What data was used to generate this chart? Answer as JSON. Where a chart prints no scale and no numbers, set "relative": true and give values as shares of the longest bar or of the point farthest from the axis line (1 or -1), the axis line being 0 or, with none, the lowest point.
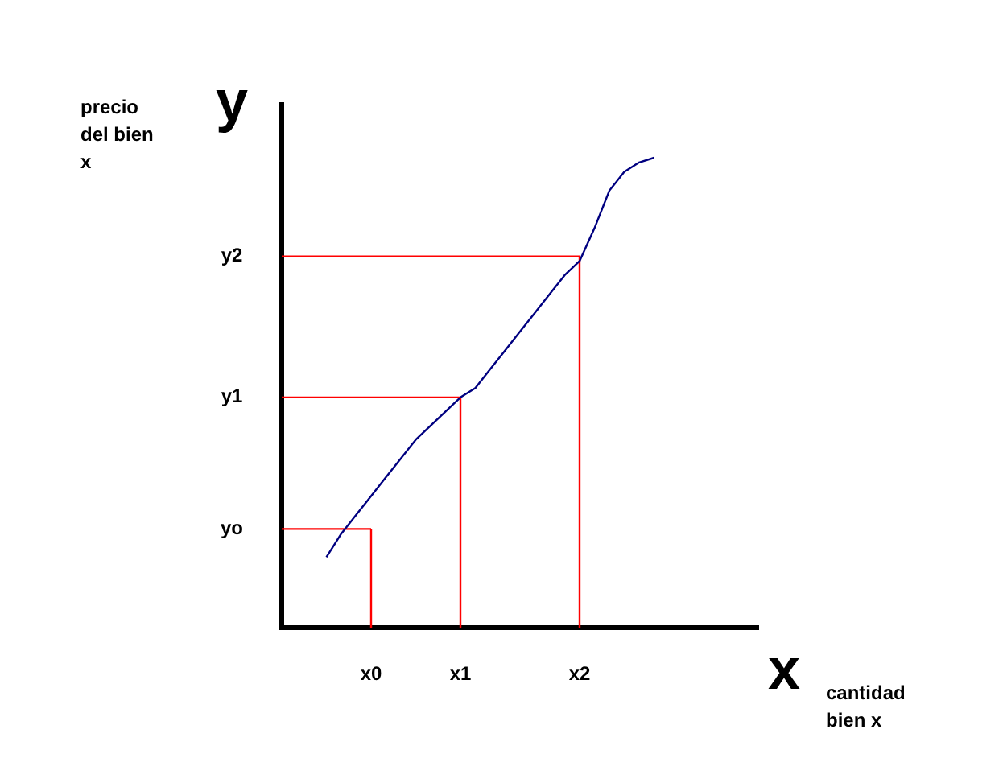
{
  "chart_data": {
    "type": "line",
    "relative": true,
    "xlabel": "cantidad bien x",
    "marker": "none",
    "annotations": [
      "y",
      "x",
      "precio del bien x"
    ],
    "categories": [
      null,
      null,
      null,
      null,
      null,
      null,
      "x0",
      null,
      null,
      null,
      null,
      null,
      "x1",
      null,
      null,
      null,
      null,
      null,
      null,
      null,
      "x2",
      null,
      null,
      null,
      null,
      null,
      null,
      null,
      null,
      null,
      null,
      null,
      null
    ],
    "series": [
      {
        "color": "#000080",
        "values": [
          null,
          null,
          null,
          0.15,
          0.2,
          0.24,
          0.28,
          0.32,
          0.36,
          0.4,
          0.43,
          0.46,
          0.49,
          0.51,
          0.55,
          0.59,
          0.63,
          0.67,
          0.71,
          0.75,
          0.78,
          0.85,
          0.93,
          0.97,
          0.99,
          1,
          null,
          null,
          null,
          null,
          null,
          null,
          null
        ]
      }
    ],
    "ref_lines": [
      {
        "axis": "x",
        "value": "x0",
        "color": "#ff0000"
      },
      {
        "axis": "x",
        "value": "x1",
        "color": "#ff0000"
      },
      {
        "axis": "x",
        "value": "x2",
        "color": "#ff0000"
      },
      {
        "axis": "y",
        "value": 0.21,
        "label": "yo",
        "color": "#ff0000"
      },
      {
        "axis": "y",
        "value": 0.49,
        "label": "y1",
        "color": "#ff0000"
      },
      {
        "axis": "y",
        "value": 0.79,
        "label": "y2",
        "color": "#ff0000"
      }
    ]
  }
}
